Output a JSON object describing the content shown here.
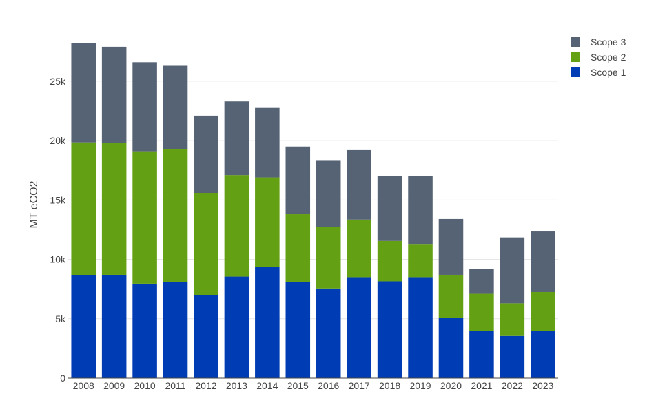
{
  "chart_data": {
    "type": "bar",
    "stacked": true,
    "ylabel": "MT eCO2",
    "ylim": [
      0,
      28300
    ],
    "yticks": [
      0,
      5000,
      10000,
      15000,
      20000,
      25000
    ],
    "ytick_labels": [
      "0",
      "5k",
      "10k",
      "15k",
      "20k",
      "25k"
    ],
    "grid": true,
    "legend_position": "top-right",
    "categories": [
      "2008",
      "2009",
      "2010",
      "2011",
      "2012",
      "2013",
      "2014",
      "2015",
      "2016",
      "2017",
      "2018",
      "2019",
      "2020",
      "2021",
      "2022",
      "2023"
    ],
    "series": [
      {
        "name": "Scope 1",
        "color": "#003cb4",
        "values": [
          8650,
          8700,
          7950,
          8100,
          7000,
          8550,
          9350,
          8100,
          7550,
          8500,
          8150,
          8500,
          5100,
          4000,
          3550,
          4000
        ]
      },
      {
        "name": "Scope 2",
        "color": "#64a014",
        "values": [
          11200,
          11100,
          11150,
          11200,
          8600,
          8550,
          7550,
          5700,
          5150,
          4850,
          3400,
          2800,
          3600,
          3100,
          2750,
          3250
        ]
      },
      {
        "name": "Scope 3",
        "color": "#566374",
        "values": [
          8350,
          8100,
          7500,
          7000,
          6500,
          6200,
          5850,
          5700,
          5600,
          5850,
          5500,
          5750,
          4700,
          2100,
          5550,
          5100
        ]
      }
    ],
    "legend_order": [
      "Scope 3",
      "Scope 2",
      "Scope 1"
    ]
  }
}
